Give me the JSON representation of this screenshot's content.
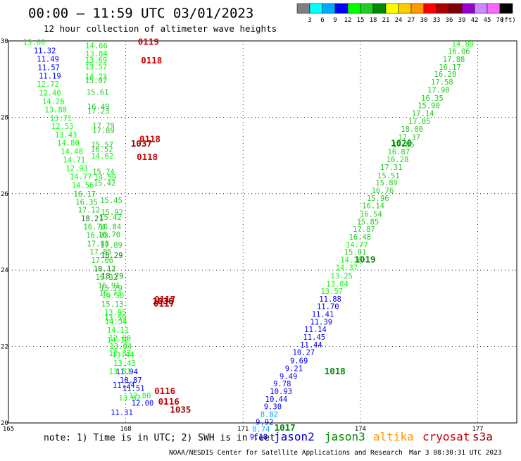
{
  "header": {
    "title": "00:00 – 11:59 UTC 03/01/2023",
    "subtitle": "12 hour collection of altimeter wave heights"
  },
  "colorbar": {
    "labels": [
      "3",
      "6",
      "9",
      "12",
      "15",
      "18",
      "21",
      "24",
      "27",
      "30",
      "33",
      "36",
      "39",
      "42",
      "45",
      "70"
    ],
    "unit": "(ft)",
    "colors": [
      "#808080",
      "#00ffff",
      "#00aaff",
      "#0000ff",
      "#00ff00",
      "#22cc22",
      "#008800",
      "#ffff00",
      "#ffcc00",
      "#ff9900",
      "#ff0000",
      "#aa0000",
      "#800000",
      "#9900cc",
      "#cc88ff",
      "#ff66ff",
      "#000000"
    ]
  },
  "footer": {
    "note": "note:  1) Time is in UTC;  2) SWH is in feet",
    "missions": [
      {
        "name": "jason2",
        "color": "#0000cc"
      },
      {
        "name": "jason3",
        "color": "#008800"
      },
      {
        "name": "altika",
        "color": "#ff9900"
      },
      {
        "name": "cryosat",
        "color": "#cc0000"
      },
      {
        "name": "s3a",
        "color": "#990000"
      }
    ],
    "credit": "NOAA/NESDIS Center for Satellite Applications and Research",
    "timestamp": "Mar  3 08:30:31 UTC 2023"
  },
  "chart_data": {
    "type": "scatter",
    "title": "00:00 – 11:59 UTC 03/01/2023",
    "subtitle": "12 hour collection of altimeter wave heights",
    "xlim": [
      165,
      178
    ],
    "ylim": [
      20,
      30
    ],
    "xticks": [
      "165",
      "168",
      "171",
      "174",
      "177"
    ],
    "yticks": [
      "20",
      "22",
      "24",
      "26",
      "28",
      "30"
    ],
    "grid": true,
    "color_scale": [
      {
        "max": 3,
        "color": "#808080"
      },
      {
        "max": 6,
        "color": "#00ffff"
      },
      {
        "max": 9,
        "color": "#00aaff"
      },
      {
        "max": 12,
        "color": "#0000ff"
      },
      {
        "max": 15,
        "color": "#00ff00"
      },
      {
        "max": 18,
        "color": "#22cc22"
      },
      {
        "max": 21,
        "color": "#008800"
      }
    ],
    "swh_points": [
      {
        "x": 165.66,
        "y": 29.97,
        "v": "13.66"
      },
      {
        "x": 165.93,
        "y": 29.75,
        "v": "11.32"
      },
      {
        "x": 166.01,
        "y": 29.53,
        "v": "11.49"
      },
      {
        "x": 166.03,
        "y": 29.31,
        "v": "11.57"
      },
      {
        "x": 166.06,
        "y": 29.09,
        "v": "11.19"
      },
      {
        "x": 166.01,
        "y": 28.87,
        "v": "12.72"
      },
      {
        "x": 166.06,
        "y": 28.64,
        "v": "12.40"
      },
      {
        "x": 166.15,
        "y": 28.42,
        "v": "14.26"
      },
      {
        "x": 166.21,
        "y": 28.2,
        "v": "13.80"
      },
      {
        "x": 166.34,
        "y": 27.98,
        "v": "13.71"
      },
      {
        "x": 166.38,
        "y": 27.77,
        "v": "12.53"
      },
      {
        "x": 166.47,
        "y": 27.55,
        "v": "13.43"
      },
      {
        "x": 166.53,
        "y": 27.33,
        "v": "14.80"
      },
      {
        "x": 166.62,
        "y": 27.11,
        "v": "14.48"
      },
      {
        "x": 166.68,
        "y": 26.89,
        "v": "14.71"
      },
      {
        "x": 166.75,
        "y": 26.67,
        "v": "12.93"
      },
      {
        "x": 166.85,
        "y": 26.45,
        "v": "14.77"
      },
      {
        "x": 166.9,
        "y": 26.23,
        "v": "14.56"
      },
      {
        "x": 166.95,
        "y": 26.0,
        "v": "16.17"
      },
      {
        "x": 167.0,
        "y": 25.78,
        "v": "16.35"
      },
      {
        "x": 167.06,
        "y": 25.58,
        "v": "17.12"
      },
      {
        "x": 167.14,
        "y": 25.36,
        "v": "18.21"
      },
      {
        "x": 167.2,
        "y": 25.14,
        "v": "16.74"
      },
      {
        "x": 167.27,
        "y": 24.92,
        "v": "16.83"
      },
      {
        "x": 167.29,
        "y": 24.7,
        "v": "17.88"
      },
      {
        "x": 167.36,
        "y": 24.48,
        "v": "17.85"
      },
      {
        "x": 167.4,
        "y": 24.26,
        "v": "17.06"
      },
      {
        "x": 167.46,
        "y": 24.04,
        "v": "18.12"
      },
      {
        "x": 167.51,
        "y": 23.82,
        "v": "16.22"
      },
      {
        "x": 167.57,
        "y": 23.6,
        "v": "16.91"
      },
      {
        "x": 167.6,
        "y": 23.4,
        "v": "16.73"
      },
      {
        "x": 167.66,
        "y": 23.12,
        "v": "15.13"
      },
      {
        "x": 167.73,
        "y": 22.9,
        "v": "13.95"
      },
      {
        "x": 167.75,
        "y": 22.66,
        "v": "14.34"
      },
      {
        "x": 167.8,
        "y": 22.44,
        "v": "14.11"
      },
      {
        "x": 167.85,
        "y": 22.22,
        "v": "12.80"
      },
      {
        "x": 167.87,
        "y": 22.01,
        "v": "13.04"
      },
      {
        "x": 167.93,
        "y": 21.79,
        "v": "13.44"
      },
      {
        "x": 167.97,
        "y": 21.57,
        "v": "13.43"
      },
      {
        "x": 168.03,
        "y": 21.35,
        "v": "11.94"
      },
      {
        "x": 168.13,
        "y": 21.13,
        "v": "10.87"
      },
      {
        "x": 168.2,
        "y": 20.91,
        "v": "11.51"
      },
      {
        "x": 168.36,
        "y": 20.72,
        "v": "12.80"
      },
      {
        "x": 167.25,
        "y": 29.88,
        "v": "14.66"
      },
      {
        "x": 167.25,
        "y": 29.67,
        "v": "13.84"
      },
      {
        "x": 167.24,
        "y": 29.5,
        "v": "13.69"
      },
      {
        "x": 167.24,
        "y": 29.33,
        "v": "13.57"
      },
      {
        "x": 167.24,
        "y": 29.07,
        "v": "14.23"
      },
      {
        "x": 167.24,
        "y": 28.97,
        "v": "15.07"
      },
      {
        "x": 167.28,
        "y": 28.66,
        "v": "15.61"
      },
      {
        "x": 167.3,
        "y": 28.28,
        "v": "16.49"
      },
      {
        "x": 167.3,
        "y": 28.17,
        "v": "17.23"
      },
      {
        "x": 167.43,
        "y": 27.79,
        "v": "17.79"
      },
      {
        "x": 167.43,
        "y": 27.66,
        "v": "17.89"
      },
      {
        "x": 167.4,
        "y": 27.29,
        "v": "15.57"
      },
      {
        "x": 167.39,
        "y": 27.17,
        "v": "16.52"
      },
      {
        "x": 167.4,
        "y": 26.99,
        "v": "14.62"
      },
      {
        "x": 167.43,
        "y": 26.58,
        "v": "15.74"
      },
      {
        "x": 167.47,
        "y": 26.44,
        "v": "14.59"
      },
      {
        "x": 167.46,
        "y": 26.28,
        "v": "15.42"
      },
      {
        "x": 167.63,
        "y": 25.83,
        "v": "15.45"
      },
      {
        "x": 167.65,
        "y": 25.52,
        "v": "15.92"
      },
      {
        "x": 167.61,
        "y": 25.39,
        "v": "15.42"
      },
      {
        "x": 167.6,
        "y": 25.14,
        "v": "16.84"
      },
      {
        "x": 167.58,
        "y": 24.94,
        "v": "16.70"
      },
      {
        "x": 167.63,
        "y": 24.66,
        "v": "17.89"
      },
      {
        "x": 167.64,
        "y": 24.39,
        "v": "18.29"
      },
      {
        "x": 167.66,
        "y": 23.86,
        "v": "18.29"
      },
      {
        "x": 167.63,
        "y": 23.53,
        "v": "15.79"
      },
      {
        "x": 167.67,
        "y": 23.34,
        "v": "14.50"
      },
      {
        "x": 167.73,
        "y": 22.76,
        "v": "13.59"
      },
      {
        "x": 167.8,
        "y": 22.18,
        "v": "14.12"
      },
      {
        "x": 167.85,
        "y": 21.83,
        "v": "12.82"
      },
      {
        "x": 167.85,
        "y": 21.36,
        "v": "13.51"
      },
      {
        "x": 167.95,
        "y": 21.0,
        "v": "11.24"
      },
      {
        "x": 168.1,
        "y": 20.66,
        "v": "13.62"
      },
      {
        "x": 168.43,
        "y": 20.53,
        "v": "12.00"
      },
      {
        "x": 167.9,
        "y": 20.28,
        "v": "11.31"
      },
      {
        "x": 176.62,
        "y": 29.93,
        "v": "14.89"
      },
      {
        "x": 176.52,
        "y": 29.73,
        "v": "16.06"
      },
      {
        "x": 176.39,
        "y": 29.52,
        "v": "17.88"
      },
      {
        "x": 176.29,
        "y": 29.32,
        "v": "16.17"
      },
      {
        "x": 176.17,
        "y": 29.13,
        "v": "16.20"
      },
      {
        "x": 176.09,
        "y": 28.93,
        "v": "17.58"
      },
      {
        "x": 176.0,
        "y": 28.72,
        "v": "17.90"
      },
      {
        "x": 175.84,
        "y": 28.51,
        "v": "16.35"
      },
      {
        "x": 175.75,
        "y": 28.31,
        "v": "15.90"
      },
      {
        "x": 175.6,
        "y": 28.11,
        "v": "17.14"
      },
      {
        "x": 175.51,
        "y": 27.9,
        "v": "17.05"
      },
      {
        "x": 175.32,
        "y": 27.69,
        "v": "18.00"
      },
      {
        "x": 175.25,
        "y": 27.48,
        "v": "17.37"
      },
      {
        "x": 175.1,
        "y": 27.29,
        "v": "17.85"
      },
      {
        "x": 174.98,
        "y": 27.1,
        "v": "16.87"
      },
      {
        "x": 174.95,
        "y": 26.9,
        "v": "16.28"
      },
      {
        "x": 174.79,
        "y": 26.7,
        "v": "17.31"
      },
      {
        "x": 174.72,
        "y": 26.48,
        "v": "15.51"
      },
      {
        "x": 174.67,
        "y": 26.29,
        "v": "15.89"
      },
      {
        "x": 174.57,
        "y": 26.09,
        "v": "16.76"
      },
      {
        "x": 174.45,
        "y": 25.89,
        "v": "15.96"
      },
      {
        "x": 174.33,
        "y": 25.69,
        "v": "16.14"
      },
      {
        "x": 174.27,
        "y": 25.47,
        "v": "16.54"
      },
      {
        "x": 174.19,
        "y": 25.27,
        "v": "15.85"
      },
      {
        "x": 174.09,
        "y": 25.07,
        "v": "17.87"
      },
      {
        "x": 173.99,
        "y": 24.87,
        "v": "16.48"
      },
      {
        "x": 173.91,
        "y": 24.67,
        "v": "14.77"
      },
      {
        "x": 173.87,
        "y": 24.47,
        "v": "15.01"
      },
      {
        "x": 173.77,
        "y": 24.27,
        "v": "14.36"
      },
      {
        "x": 173.65,
        "y": 24.07,
        "v": "14.37"
      },
      {
        "x": 173.52,
        "y": 23.86,
        "v": "13.25"
      },
      {
        "x": 173.41,
        "y": 23.64,
        "v": "13.84"
      },
      {
        "x": 173.27,
        "y": 23.45,
        "v": "13.57"
      },
      {
        "x": 173.23,
        "y": 23.25,
        "v": "11.88"
      },
      {
        "x": 173.17,
        "y": 23.05,
        "v": "11.70"
      },
      {
        "x": 173.04,
        "y": 22.85,
        "v": "11.41"
      },
      {
        "x": 173.0,
        "y": 22.65,
        "v": "11.39"
      },
      {
        "x": 172.85,
        "y": 22.45,
        "v": "11.14"
      },
      {
        "x": 172.82,
        "y": 22.25,
        "v": "11.45"
      },
      {
        "x": 172.74,
        "y": 22.05,
        "v": "11.44"
      },
      {
        "x": 172.55,
        "y": 21.85,
        "v": "10.27"
      },
      {
        "x": 172.43,
        "y": 21.63,
        "v": "9.69"
      },
      {
        "x": 172.3,
        "y": 21.43,
        "v": "9.21"
      },
      {
        "x": 172.16,
        "y": 21.23,
        "v": "9.49"
      },
      {
        "x": 172.0,
        "y": 21.03,
        "v": "9.78"
      },
      {
        "x": 171.97,
        "y": 20.83,
        "v": "10.93"
      },
      {
        "x": 171.85,
        "y": 20.63,
        "v": "10.44"
      },
      {
        "x": 171.76,
        "y": 20.43,
        "v": "9.30"
      },
      {
        "x": 171.67,
        "y": 20.23,
        "v": "8.82"
      },
      {
        "x": 171.55,
        "y": 20.03,
        "v": "9.92"
      },
      {
        "x": 171.46,
        "y": 19.84,
        "v": "8.74"
      },
      {
        "x": 171.4,
        "y": 19.64,
        "v": "9.18"
      }
    ],
    "cycle_labels": [
      {
        "x": 168.58,
        "y": 29.97,
        "v": "0119",
        "mission": "cryosat"
      },
      {
        "x": 168.66,
        "y": 29.48,
        "v": "0118",
        "mission": "cryosat"
      },
      {
        "x": 168.62,
        "y": 27.43,
        "v": "0118",
        "mission": "cryosat"
      },
      {
        "x": 168.55,
        "y": 26.96,
        "v": "0118",
        "mission": "cryosat"
      },
      {
        "x": 168.4,
        "y": 27.31,
        "v": "1037",
        "mission": "s3a"
      },
      {
        "x": 169.0,
        "y": 23.23,
        "v": "0117",
        "mission": "cryosat"
      },
      {
        "x": 168.98,
        "y": 23.12,
        "v": "0117",
        "mission": "cryosat"
      },
      {
        "x": 168.95,
        "y": 23.18,
        "v": "1036",
        "mission": "s3a"
      },
      {
        "x": 169.0,
        "y": 20.83,
        "v": "0116",
        "mission": "cryosat"
      },
      {
        "x": 169.1,
        "y": 20.55,
        "v": "0116",
        "mission": "cryosat"
      },
      {
        "x": 169.4,
        "y": 20.34,
        "v": "1035",
        "mission": "s3a"
      },
      {
        "x": 175.05,
        "y": 27.32,
        "v": "1020",
        "mission": "jason3"
      },
      {
        "x": 174.12,
        "y": 24.27,
        "v": "1019",
        "mission": "jason3"
      },
      {
        "x": 173.35,
        "y": 21.35,
        "v": "1018",
        "mission": "jason3"
      },
      {
        "x": 172.07,
        "y": 19.87,
        "v": "1017",
        "mission": "jason3"
      }
    ]
  }
}
